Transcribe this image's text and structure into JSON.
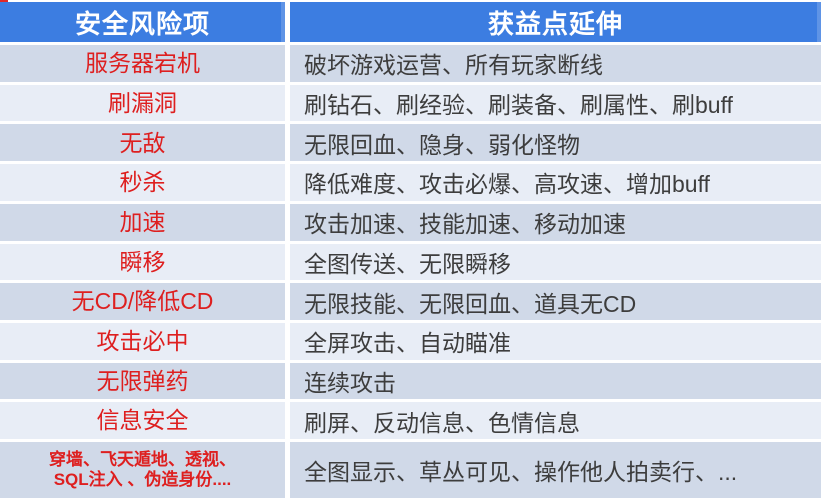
{
  "table": {
    "headers": {
      "risk": "安全风险项",
      "benefit": "获益点延伸"
    },
    "rows": [
      {
        "risk": "服务器宕机",
        "benefit": "破坏游戏运营、所有玩家断线"
      },
      {
        "risk": "刷漏洞",
        "benefit": "刷钻石、刷经验、刷装备、刷属性、刷buff"
      },
      {
        "risk": "无敌",
        "benefit": "无限回血、隐身、弱化怪物"
      },
      {
        "risk": "秒杀",
        "benefit": "降低难度、攻击必爆、高攻速、增加buff"
      },
      {
        "risk": "加速",
        "benefit": "攻击加速、技能加速、移动加速"
      },
      {
        "risk": "瞬移",
        "benefit": "全图传送、无限瞬移"
      },
      {
        "risk": "无CD/降低CD",
        "benefit": "无限技能、无限回血、道具无CD"
      },
      {
        "risk": "攻击必中",
        "benefit": "全屏攻击、自动瞄准"
      },
      {
        "risk": "无限弹药",
        "benefit": "连续攻击"
      },
      {
        "risk": "信息安全",
        "benefit": "刷屏、反动信息、色情信息"
      },
      {
        "risk": "穿墙、飞天遁地、透视、\nSQL注入 、伪造身份....",
        "benefit": "全图显示、草丛可见、操作他人拍卖行、..."
      }
    ],
    "colors": {
      "header_bg": "#3c7de1",
      "row_dark": "#d0d9e8",
      "row_light": "#e8edf6",
      "risk_text": "#de1f1f",
      "benefit_text": "#3d3d3d"
    }
  }
}
